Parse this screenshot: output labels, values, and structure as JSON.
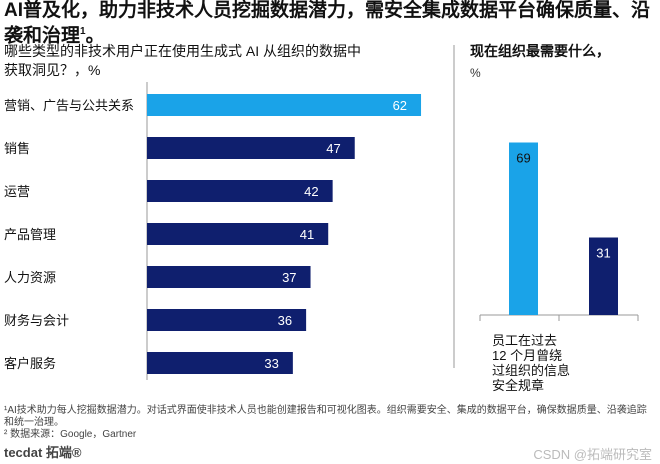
{
  "title": "AI普及化，助力非技术人员挖掘数据潜力，需安全集成数据平台确保质量、沿袭和治理",
  "title_sup": "1",
  "title_end": "。",
  "chart_data": [
    {
      "type": "bar",
      "orientation": "horizontal",
      "title": "哪些类型的非技术用户正在使用生成式 AI 从组织的数据中获取洞见？，%",
      "categories": [
        "营销、广告与公共关系",
        "销售",
        "运营",
        "产品管理",
        "人力资源",
        "财务与会计",
        "客户服务"
      ],
      "values": [
        62,
        47,
        42,
        41,
        37,
        36,
        33
      ],
      "colors": [
        "#1aa3e8",
        "#0f1f6e",
        "#0f1f6e",
        "#0f1f6e",
        "#0f1f6e",
        "#0f1f6e",
        "#0f1f6e"
      ],
      "xlim": [
        0,
        70
      ]
    },
    {
      "type": "bar",
      "orientation": "vertical",
      "title": "现在组织最需要什么，",
      "unit": "%",
      "categories": [
        "员工在过去 12 个月曾绕过组织的信息安全规章",
        ""
      ],
      "values": [
        69,
        31
      ],
      "colors": [
        "#1aa3e8",
        "#0f1f6e"
      ],
      "ylim": [
        0,
        80
      ]
    }
  ],
  "left_title_line1": "哪些类型的非技术用户正在使用生成式 AI 从组织的数据中",
  "left_title_line2": "获取洞见？，%",
  "right_title": "现在组织最需要什么，",
  "right_unit": "%",
  "footnote1": "¹AI技术助力每人挖掘数据潜力。对话式界面使非技术人员也能创建报告和可视化图表。组织需要安全、集成的数据平台，确保数据质量、沿袭追踪和统一治理。",
  "footnote2": "² 数据来源：Google，Gartner",
  "logo": "tecdat 拓端®",
  "watermark": "CSDN @拓端研究室"
}
